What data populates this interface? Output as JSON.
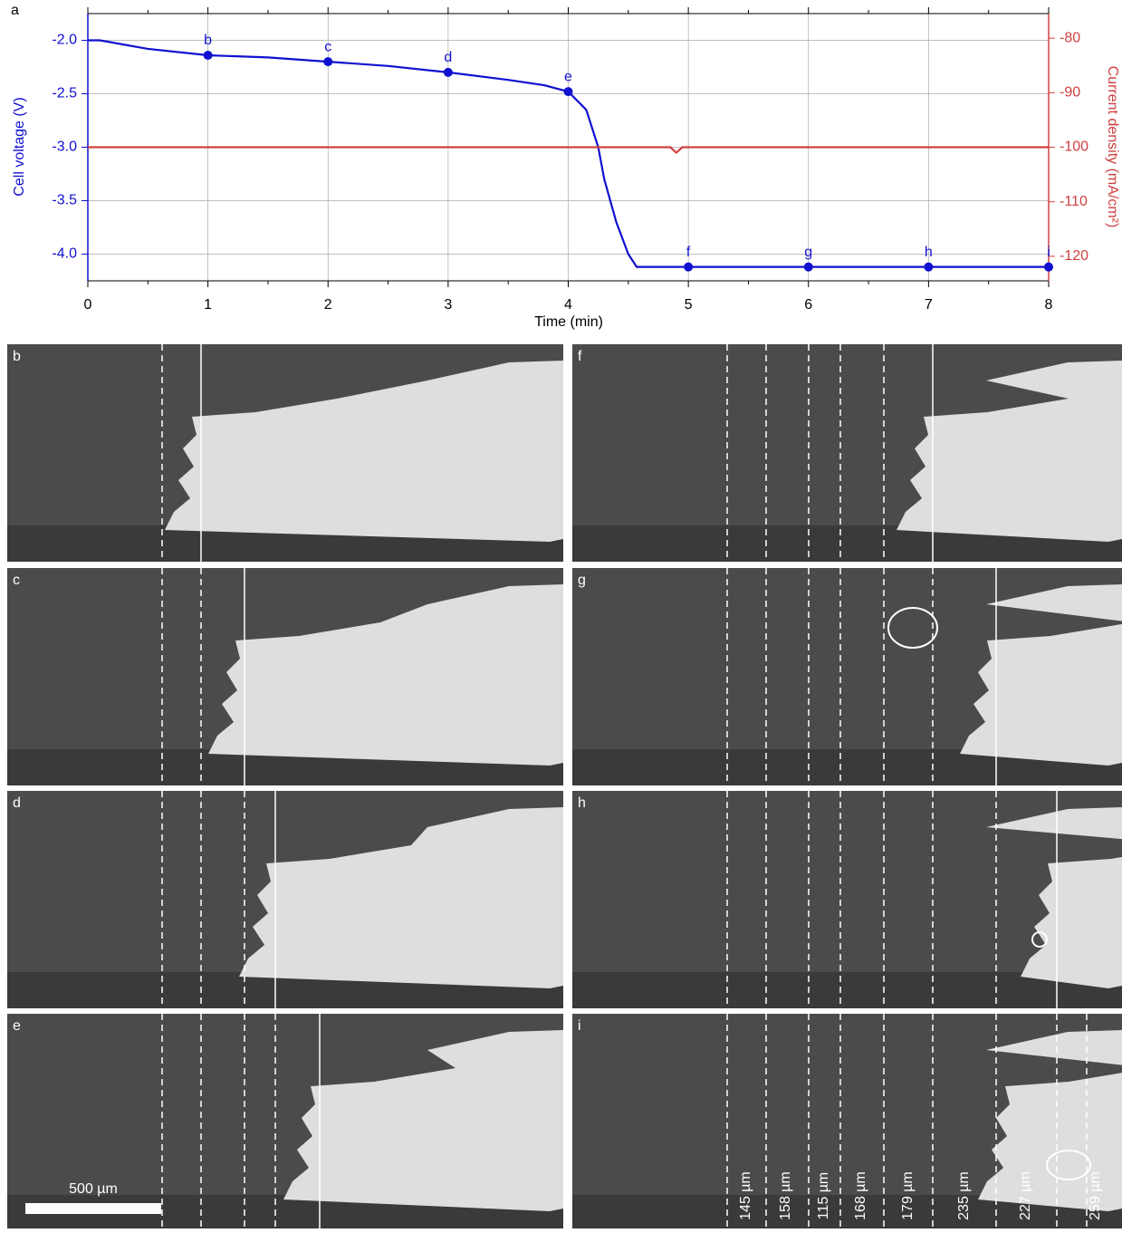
{
  "chart_data": {
    "type": "line",
    "panel_label": "a",
    "xlabel": "Time (min)",
    "ylabel": "Cell voltage (V)",
    "y2label": "Current density (mA/cm²)",
    "xlim": [
      0,
      8
    ],
    "xticks": [
      0,
      1,
      2,
      3,
      4,
      5,
      6,
      7,
      8
    ],
    "ylim": [
      -4.25,
      -1.75
    ],
    "yticks": [
      {
        "value": -2,
        "label": "-2.0"
      },
      {
        "value": -2.5,
        "label": "-2.5"
      },
      {
        "value": -3,
        "label": "-3.0"
      },
      {
        "value": -3.5,
        "label": "-3.5"
      },
      {
        "value": -4,
        "label": "-4.0"
      }
    ],
    "y2lim": [
      -124.5,
      -75.5
    ],
    "y2ticks": [
      -80,
      -90,
      -100,
      -110,
      -120
    ],
    "grid": true,
    "ycolor": "#1010d0",
    "y2color": "#d04040",
    "series": [
      {
        "color": "#1010d0",
        "axis": "y",
        "x": [
          0,
          0.1,
          0.5,
          1,
          1.5,
          2,
          2.5,
          3,
          3.5,
          3.8,
          4,
          4.15,
          4.25,
          4.3,
          4.4,
          4.5,
          4.57,
          5,
          6,
          7,
          8
        ],
        "values": [
          -2.0,
          -2.0,
          -2.08,
          -2.14,
          -2.16,
          -2.2,
          -2.24,
          -2.3,
          -2.37,
          -2.42,
          -2.48,
          -2.65,
          -3.0,
          -3.3,
          -3.7,
          -4.0,
          -4.12,
          -4.12,
          -4.12,
          -4.12,
          -4.12
        ]
      },
      {
        "color": "#d04040",
        "axis": "y2",
        "x": [
          0,
          4.85,
          4.9,
          4.95,
          8
        ],
        "values": [
          -100,
          -100,
          -101,
          -100,
          -100
        ]
      }
    ],
    "markers": {
      "color": "#1010d0",
      "x": [
        1,
        2,
        3,
        4,
        5,
        6,
        7,
        8
      ],
      "values": [
        -2.14,
        -2.2,
        -2.3,
        -2.48,
        -4.12,
        -4.12,
        -4.12,
        -4.12
      ],
      "labels": [
        "b",
        "c",
        "d",
        "e",
        "f",
        "g",
        "h",
        "i"
      ]
    }
  },
  "micrographs": {
    "panels": [
      "b",
      "c",
      "d",
      "e",
      "f",
      "g",
      "h",
      "i"
    ],
    "scale_bar": "500 µm",
    "distances": [
      "145 µm",
      "158 µm",
      "115 µm",
      "168 µm",
      "179 µm",
      "235 µm",
      "227 µm",
      "259 µm"
    ]
  }
}
